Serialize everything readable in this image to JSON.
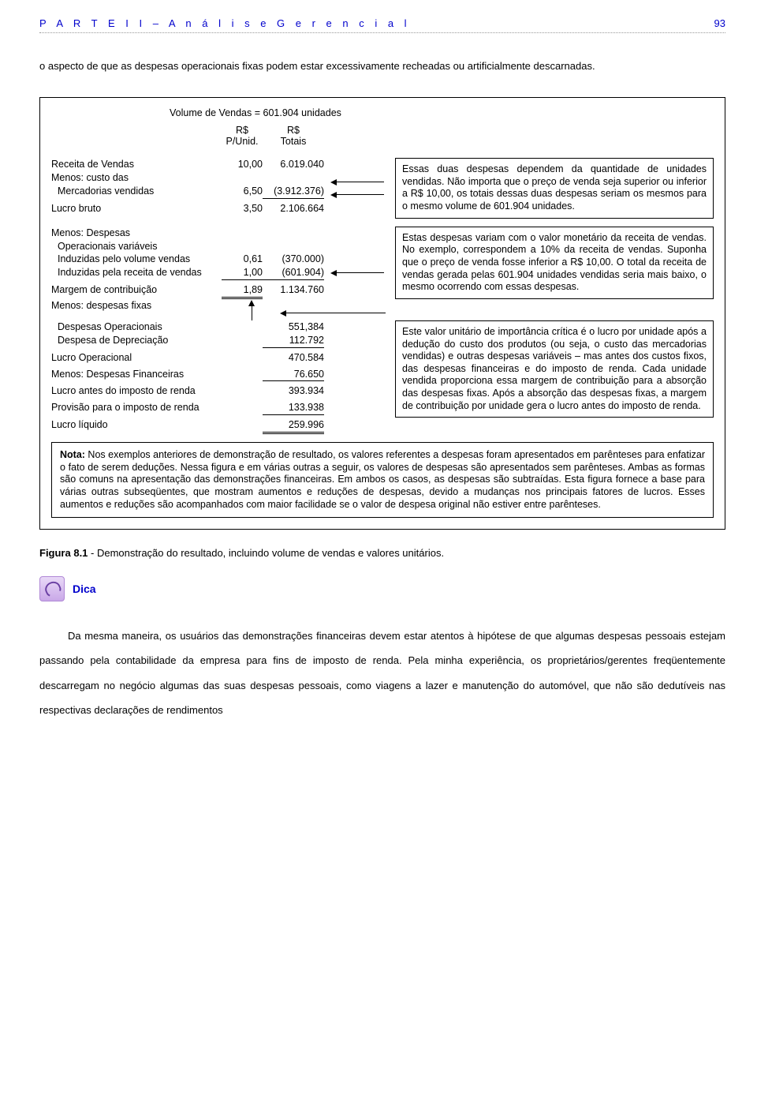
{
  "header": {
    "part": "P A R T E  I I  –  A n á l i s e  G e r e n c i a l",
    "pageno": "93"
  },
  "intro": "o aspecto de que as despesas operacionais fixas podem estar excessivamente recheadas ou artificialmente descarnadas.",
  "figure": {
    "volume_line": "Volume de Vendas = 601.904 unidades",
    "col_unit_1": "R$",
    "col_unit_2": "P/Unid.",
    "col_total_1": "R$",
    "col_total_2": "Totais",
    "block1": {
      "rows": [
        {
          "label": "Receita de Vendas",
          "unit": "10,00",
          "total": "6.019.040"
        },
        {
          "label": "Menos: custo das",
          "unit": "",
          "total": ""
        },
        {
          "label": "Mercadorias vendidas",
          "indent": true,
          "unit": "6,50",
          "total": "(3.912.376)",
          "u_t": true
        },
        {
          "label": "",
          "unit": "",
          "total": ""
        },
        {
          "label": "Lucro bruto",
          "unit": "3,50",
          "total": "2.106.664"
        }
      ],
      "callout": "Essas duas despesas dependem da quantidade de unidades vendidas. Não importa que o preço de venda seja superior ou inferior a R$ 10,00, os totais dessas duas despesas seriam os mesmos para o mesmo volume de 601.904 unidades."
    },
    "block2": {
      "rows": [
        {
          "label": "Menos: Despesas",
          "unit": "",
          "total": ""
        },
        {
          "label": "Operacionais variáveis",
          "indent": true,
          "unit": "",
          "total": ""
        },
        {
          "label": "Induzidas pelo volume vendas",
          "indent": true,
          "unit": "0,61",
          "total": "(370.000)"
        },
        {
          "label": "Induzidas pela receita de vendas",
          "indent": true,
          "unit": "1,00",
          "total": "(601.904)",
          "u_u": true,
          "u_t": true
        },
        {
          "label": "",
          "unit": "",
          "total": ""
        },
        {
          "label": "Margem de contribuição",
          "unit": "1,89",
          "total": "1.134.760",
          "d_u": true
        },
        {
          "label": "Menos: despesas fixas",
          "unit": "",
          "total": ""
        }
      ],
      "callout": "Estas despesas variam com o valor monetário da receita de vendas. No exemplo, correspondem a 10% da receita de vendas. Suponha que o preço de venda fosse inferior a R$ 10,00. O total da receita de vendas gerada pelas 601.904 unidades vendidas seria mais baixo, o mesmo ocorrendo com essas despesas."
    },
    "block3": {
      "rows": [
        {
          "label": "Despesas Operacionais",
          "indent": true,
          "unit": "",
          "total": "551,384"
        },
        {
          "label": "Despesa de Depreciação",
          "indent": true,
          "unit": "",
          "total": "112.792",
          "u_t": true
        },
        {
          "label": "",
          "unit": "",
          "total": ""
        },
        {
          "label": "Lucro Operacional",
          "unit": "",
          "total": "470.584"
        },
        {
          "label": "",
          "unit": "",
          "total": ""
        },
        {
          "label": "Menos: Despesas Financeiras",
          "unit": "",
          "total": "76.650",
          "u_t": true
        },
        {
          "label": "",
          "unit": "",
          "total": ""
        },
        {
          "label": "Lucro antes do imposto de renda",
          "unit": "",
          "total": "393.934"
        },
        {
          "label": "",
          "unit": "",
          "total": ""
        },
        {
          "label": "Provisão para o imposto de renda",
          "unit": "",
          "total": "133.938",
          "u_t": true
        },
        {
          "label": "",
          "unit": "",
          "total": ""
        },
        {
          "label": "Lucro líquido",
          "unit": "",
          "total": "259.996",
          "d_t": true
        }
      ],
      "callout": "Este valor unitário de importância crítica é o lucro por unidade após a dedução do custo dos produtos (ou seja, o custo das mercadorias vendidas) e outras despesas variáveis – mas antes dos custos fixos, das despesas financeiras e do imposto de renda. Cada unidade vendida proporciona essa margem de contribuição para a absorção das despesas fixas. Após a absorção das despesas fixas, a margem de contribuição por unidade gera o lucro antes do imposto de renda."
    },
    "note_label": "Nota:",
    "note": " Nos exemplos anteriores de demonstração de resultado, os valores referentes a despesas foram apresentados em parênteses para enfatizar o fato de serem deduções. Nessa figura e em várias outras a seguir, os valores de despesas são apresentados sem parênteses. Ambas as formas são comuns na apresentação das demonstrações financeiras. Em ambos os casos, as despesas são subtraídas. Esta figura fornece a base para várias outras subseqüentes, que mostram aumentos e reduções de despesas, devido a mudanças nos principais fatores de lucros. Esses aumentos e reduções são acompanhados com maior facilidade se o valor de despesa original não estiver entre parênteses."
  },
  "caption_label": "Figura 8.1",
  "caption_text": " - Demonstração do resultado, incluindo volume de vendas e valores unitários.",
  "dica_label": "Dica",
  "body": "Da mesma maneira, os usuários das demonstrações financeiras devem estar atentos à hipótese de que algumas despesas pessoais estejam passando pela contabilidade da empresa para fins de imposto de renda. Pela minha experiência, os proprietários/gerentes freqüentemente descarregam no negócio algumas das suas despesas pessoais, como viagens a lazer e manutenção do automóvel, que não são dedutíveis nas respectivas declarações de rendimentos"
}
